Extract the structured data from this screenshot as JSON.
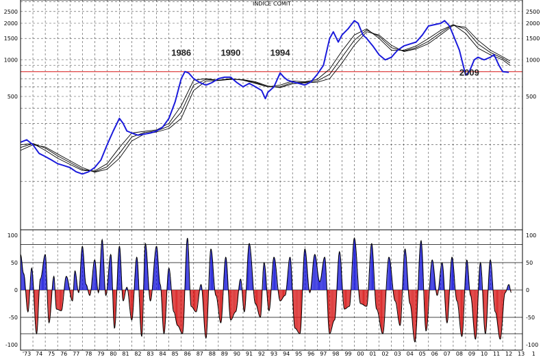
{
  "chart_data": [
    {
      "type": "line",
      "title": "INDICE COMIT",
      "scale": "log",
      "y_ticks": [
        2500,
        2000,
        1500,
        1000,
        500
      ],
      "y_tick_labels": [
        "2500",
        "2000",
        "1500",
        "1000",
        "500"
      ],
      "reference_line": {
        "value": 800,
        "color": "#e04040"
      },
      "annotations": [
        {
          "label": "1986",
          "x": 1986.0,
          "y": 1080
        },
        {
          "label": "1990",
          "x": 1990.0,
          "y": 1080
        },
        {
          "label": "1994",
          "x": 1994.0,
          "y": 1080
        },
        {
          "label": "2009",
          "x": 2009.3,
          "y": 740
        }
      ],
      "series": [
        {
          "color": "#1a1adb",
          "x": [
            1973.0,
            1973.5,
            1974.0,
            1974.5,
            1975.0,
            1975.5,
            1976.0,
            1976.5,
            1977.0,
            1977.5,
            1978.0,
            1978.5,
            1979.0,
            1979.5,
            1980.0,
            1980.5,
            1981.0,
            1981.3,
            1981.6,
            1982.0,
            1982.5,
            1983.0,
            1983.5,
            1984.0,
            1984.5,
            1985.0,
            1985.5,
            1986.0,
            1986.3,
            1986.6,
            1987.0,
            1987.5,
            1988.0,
            1988.5,
            1989.0,
            1989.5,
            1990.0,
            1990.5,
            1991.0,
            1991.5,
            1992.0,
            1992.5,
            1992.8,
            1993.0,
            1993.5,
            1994.0,
            1994.3,
            1994.6,
            1995.0,
            1995.5,
            1996.0,
            1996.5,
            1997.0,
            1997.5,
            1998.0,
            1998.3,
            1998.7,
            1999.0,
            1999.5,
            2000.0,
            2000.3,
            2000.7,
            2001.0,
            2001.5,
            2002.0,
            2002.5,
            2003.0,
            2003.5,
            2004.0,
            2004.5,
            2005.0,
            2005.5,
            2006.0,
            2006.5,
            2007.0,
            2007.3,
            2007.7,
            2008.0,
            2008.5,
            2009.0,
            2009.3,
            2009.7,
            2010.0,
            2010.5,
            2011.0,
            2011.3,
            2011.7,
            2012.0,
            2012.5
          ],
          "y": [
            210,
            220,
            200,
            170,
            160,
            150,
            140,
            135,
            130,
            120,
            115,
            120,
            130,
            150,
            200,
            260,
            330,
            300,
            260,
            250,
            240,
            245,
            250,
            260,
            280,
            330,
            450,
            700,
            800,
            780,
            700,
            650,
            620,
            650,
            700,
            720,
            720,
            650,
            600,
            640,
            600,
            560,
            480,
            540,
            600,
            780,
            720,
            680,
            660,
            640,
            620,
            660,
            760,
            900,
            1500,
            1700,
            1400,
            1600,
            1800,
            2100,
            2000,
            1600,
            1500,
            1300,
            1100,
            1000,
            1050,
            1200,
            1300,
            1350,
            1400,
            1600,
            1900,
            1950,
            2000,
            2100,
            1900,
            1600,
            1200,
            750,
            800,
            1000,
            1050,
            1000,
            1050,
            1100,
            900,
            800,
            790
          ]
        },
        {
          "color": "#000000",
          "x": [
            1973.0,
            1974.0,
            1975.0,
            1976.0,
            1977.0,
            1978.0,
            1979.0,
            1980.0,
            1981.0,
            1982.0,
            1983.0,
            1984.0,
            1985.0,
            1986.0,
            1987.0,
            1988.0,
            1989.0,
            1990.0,
            1991.0,
            1992.0,
            1993.0,
            1994.0,
            1995.0,
            1996.0,
            1997.0,
            1998.0,
            1999.0,
            2000.0,
            2001.0,
            2002.0,
            2003.0,
            2004.0,
            2005.0,
            2006.0,
            2007.0,
            2008.0,
            2009.0,
            2010.0,
            2011.0,
            2012.0,
            2012.6
          ],
          "y": [
            200,
            205,
            180,
            155,
            138,
            123,
            122,
            140,
            190,
            250,
            258,
            265,
            300,
            420,
            680,
            700,
            680,
            700,
            680,
            640,
            600,
            620,
            670,
            660,
            690,
            840,
            1180,
            1600,
            1800,
            1500,
            1200,
            1200,
            1300,
            1500,
            1750,
            1950,
            1650,
            1250,
            1100,
            1000,
            900
          ]
        },
        {
          "color": "#000000",
          "x": [
            1973.0,
            1974.0,
            1975.0,
            1976.0,
            1977.0,
            1978.0,
            1979.0,
            1980.0,
            1981.0,
            1982.0,
            1983.0,
            1984.0,
            1985.0,
            1986.0,
            1987.0,
            1988.0,
            1989.0,
            1990.0,
            1991.0,
            1992.0,
            1993.0,
            1994.0,
            1995.0,
            1996.0,
            1997.0,
            1998.0,
            1999.0,
            2000.0,
            2001.0,
            2002.0,
            2003.0,
            2004.0,
            2005.0,
            2006.0,
            2007.0,
            2008.0,
            2009.0,
            2010.0,
            2011.0,
            2012.0,
            2012.6
          ],
          "y": [
            190,
            205,
            188,
            162,
            143,
            126,
            120,
            132,
            170,
            232,
            252,
            260,
            285,
            370,
            620,
            690,
            680,
            695,
            685,
            650,
            600,
            600,
            650,
            655,
            670,
            760,
            1050,
            1450,
            1760,
            1560,
            1260,
            1180,
            1260,
            1420,
            1680,
            1950,
            1780,
            1350,
            1150,
            1030,
            940
          ]
        },
        {
          "color": "#000000",
          "x": [
            1973.0,
            1974.0,
            1975.0,
            1976.0,
            1977.0,
            1978.0,
            1979.0,
            1980.0,
            1981.0,
            1982.0,
            1983.0,
            1984.0,
            1985.0,
            1986.0,
            1987.0,
            1988.0,
            1989.0,
            1990.0,
            1991.0,
            1992.0,
            1993.0,
            1994.0,
            1995.0,
            1996.0,
            1997.0,
            1998.0,
            1999.0,
            2000.0,
            2001.0,
            2002.0,
            2003.0,
            2004.0,
            2005.0,
            2006.0,
            2007.0,
            2008.0,
            2009.0,
            2010.0,
            2011.0,
            2012.0,
            2012.6
          ],
          "y": [
            180,
            200,
            192,
            168,
            148,
            130,
            119,
            126,
            155,
            215,
            245,
            255,
            272,
            330,
            560,
            670,
            675,
            690,
            688,
            660,
            610,
            590,
            635,
            648,
            655,
            700,
            940,
            1320,
            1700,
            1600,
            1320,
            1170,
            1230,
            1360,
            1610,
            1920,
            1850,
            1450,
            1200,
            1060,
            980
          ]
        }
      ]
    },
    {
      "type": "bar",
      "ylim": [
        -105,
        105
      ],
      "y_ticks": [
        100,
        50,
        0,
        -50,
        -100
      ],
      "y_tick_labels": [
        "100",
        "50",
        "0",
        "-50",
        "-100"
      ],
      "hlines": [
        83,
        50,
        0,
        -50,
        -80
      ],
      "positive_color": "#1a1adb",
      "negative_color": "#d81818",
      "cycle_pivots": {
        "x": [
          1973.0,
          1973.25,
          1973.6,
          1973.9,
          1974.3,
          1974.6,
          1975.0,
          1975.3,
          1975.7,
          1975.9,
          1976.3,
          1976.7,
          1977.2,
          1977.4,
          1977.7,
          1978.0,
          1978.3,
          1978.6,
          1979.0,
          1979.3,
          1979.6,
          1979.9,
          1980.3,
          1980.6,
          1981.0,
          1981.3,
          1981.6,
          1982.0,
          1982.4,
          1982.8,
          1983.1,
          1983.5,
          1984.0,
          1984.3,
          1984.6,
          1985.0,
          1985.4,
          1985.7,
          1986.1,
          1986.5,
          1986.8,
          1987.2,
          1987.6,
          1988.0,
          1988.4,
          1988.8,
          1989.2,
          1989.6,
          1990.0,
          1990.4,
          1990.8,
          1991.1,
          1991.5,
          1992.0,
          1992.4,
          1992.7,
          1993.1,
          1993.5,
          1994.0,
          1994.4,
          1994.8,
          1995.2,
          1995.6,
          1996.0,
          1996.4,
          1996.8,
          1997.2,
          1997.6,
          1998.0,
          1998.4,
          1998.8,
          1999.2,
          1999.6,
          2000.0,
          2000.5,
          2001.0,
          2001.4,
          2001.8,
          2002.3,
          2002.8,
          2003.3,
          2003.7,
          2004.1,
          2004.5,
          2004.9,
          2005.4,
          2005.8,
          2006.3,
          2006.7,
          2007.1,
          2007.5,
          2007.9,
          2008.3,
          2008.7,
          2009.1,
          2009.4,
          2009.8,
          2010.2,
          2010.6,
          2011.0,
          2011.4,
          2011.8,
          2012.2,
          2012.5,
          2012.7
        ],
        "y": [
          65,
          30,
          -40,
          40,
          -80,
          20,
          65,
          -60,
          25,
          -35,
          -38,
          25,
          -20,
          35,
          -5,
          80,
          10,
          -10,
          55,
          -5,
          92,
          -10,
          65,
          -70,
          80,
          -20,
          5,
          -55,
          60,
          -85,
          85,
          -20,
          80,
          10,
          -80,
          40,
          -40,
          -65,
          -80,
          95,
          -30,
          -40,
          10,
          -88,
          75,
          -10,
          -60,
          60,
          -55,
          -40,
          20,
          -40,
          85,
          -25,
          -50,
          50,
          -38,
          60,
          -20,
          -10,
          60,
          -70,
          -80,
          75,
          -5,
          65,
          15,
          60,
          -80,
          -55,
          70,
          -35,
          -30,
          95,
          -25,
          -30,
          85,
          -35,
          -80,
          60,
          -20,
          -65,
          75,
          -25,
          -95,
          90,
          -75,
          55,
          -10,
          50,
          -60,
          60,
          -20,
          -85,
          55,
          -10,
          -90,
          50,
          -80,
          55,
          -40,
          -90,
          -5,
          10,
          -5
        ]
      }
    }
  ],
  "x_axis": {
    "labels": [
      "'73",
      "74",
      "75",
      "76",
      "77",
      "78",
      "79",
      "80",
      "81",
      "82",
      "83",
      "84",
      "85",
      "86",
      "87",
      "88",
      "89",
      "90",
      "91",
      "92",
      "93",
      "94",
      "95",
      "96",
      "97",
      "98",
      "99",
      "00",
      "01",
      "02",
      "03",
      "04",
      "05",
      "06",
      "07",
      "08",
      "09",
      "10",
      "11",
      "12",
      "13",
      "1"
    ]
  }
}
